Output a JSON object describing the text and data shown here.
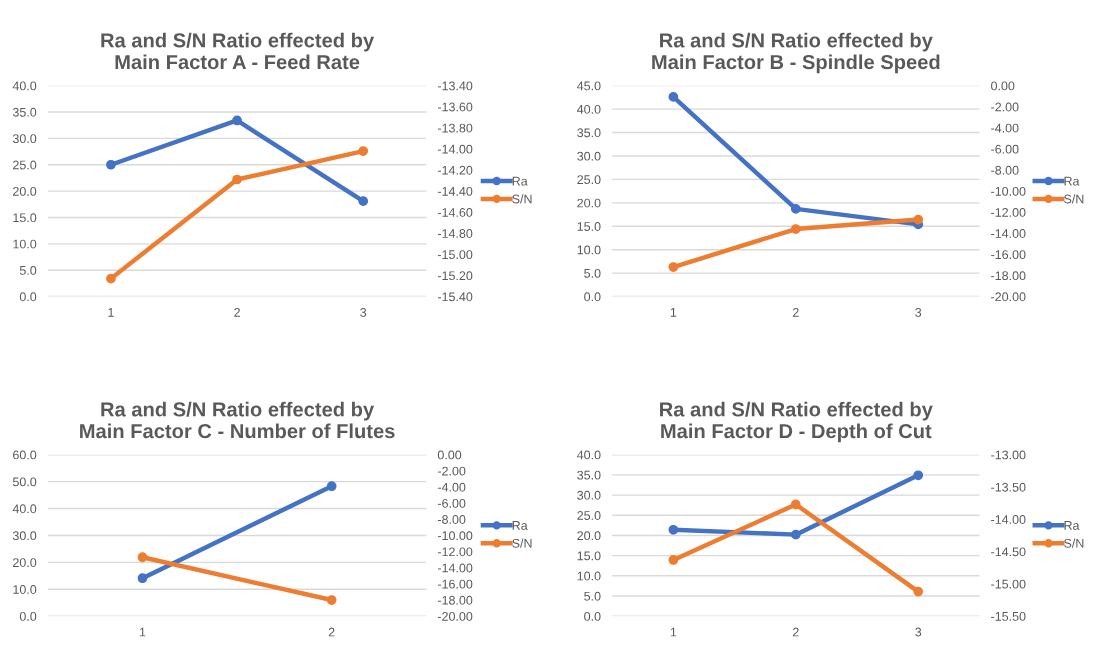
{
  "chart_data": [
    {
      "type": "line",
      "title": "Ra and S/N Ratio effected by\nMain Factor A - Feed Rate",
      "categories": [
        "1",
        "2",
        "3"
      ],
      "series": [
        {
          "name": "Ra",
          "color": "#4472c4",
          "values": [
            25.0,
            33.4,
            18.1
          ]
        },
        {
          "name": "S/N",
          "color": "#ed7d31",
          "axis": "y2",
          "values": [
            -15.23,
            -14.29,
            -14.02
          ]
        }
      ],
      "ylim": [
        0,
        40
      ],
      "yticks": [
        {
          "value": 0,
          "label": "0.0"
        },
        {
          "value": 5,
          "label": "5.0"
        },
        {
          "value": 10,
          "label": "10.0"
        },
        {
          "value": 15,
          "label": "15.0"
        },
        {
          "value": 20,
          "label": "20.0"
        },
        {
          "value": 25,
          "label": "25.0"
        },
        {
          "value": 30,
          "label": "30.0"
        },
        {
          "value": 35,
          "label": "35.0"
        },
        {
          "value": 40,
          "label": "40.0"
        }
      ],
      "y2lim": [
        -15.4,
        -13.4
      ],
      "y2ticks": [
        {
          "value": -15.4,
          "label": "-15.40"
        },
        {
          "value": -15.2,
          "label": "-15.20"
        },
        {
          "value": -15.0,
          "label": "-15.00"
        },
        {
          "value": -14.8,
          "label": "-14.80"
        },
        {
          "value": -14.6,
          "label": "-14.60"
        },
        {
          "value": -14.4,
          "label": "-14.40"
        },
        {
          "value": -14.2,
          "label": "-14.20"
        },
        {
          "value": -14.0,
          "label": "-14.00"
        },
        {
          "value": -13.8,
          "label": "-13.80"
        },
        {
          "value": -13.6,
          "label": "-13.60"
        },
        {
          "value": -13.4,
          "label": "-13.40"
        }
      ],
      "grid": "y",
      "legend": "right",
      "marker": "circle"
    },
    {
      "type": "line",
      "title": "Ra and S/N Ratio effected by\nMain Factor B - Spindle Speed",
      "categories": [
        "1",
        "2",
        "3"
      ],
      "series": [
        {
          "name": "Ra",
          "color": "#4472c4",
          "values": [
            42.6,
            18.7,
            15.4
          ]
        },
        {
          "name": "S/N",
          "color": "#ed7d31",
          "axis": "y2",
          "values": [
            -17.2,
            -13.6,
            -12.7
          ]
        }
      ],
      "ylim": [
        0,
        45
      ],
      "yticks": [
        {
          "value": 0,
          "label": "0.0"
        },
        {
          "value": 5,
          "label": "5.0"
        },
        {
          "value": 10,
          "label": "10.0"
        },
        {
          "value": 15,
          "label": "15.0"
        },
        {
          "value": 20,
          "label": "20.0"
        },
        {
          "value": 25,
          "label": "25.0"
        },
        {
          "value": 30,
          "label": "30.0"
        },
        {
          "value": 35,
          "label": "35.0"
        },
        {
          "value": 40,
          "label": "40.0"
        },
        {
          "value": 45,
          "label": "45.0"
        }
      ],
      "y2lim": [
        -20,
        0
      ],
      "y2ticks": [
        {
          "value": -20,
          "label": "-20.00"
        },
        {
          "value": -18,
          "label": "-18.00"
        },
        {
          "value": -16,
          "label": "-16.00"
        },
        {
          "value": -14,
          "label": "-14.00"
        },
        {
          "value": -12,
          "label": "-12.00"
        },
        {
          "value": -10,
          "label": "-10.00"
        },
        {
          "value": -8,
          "label": "-8.00"
        },
        {
          "value": -6,
          "label": "-6.00"
        },
        {
          "value": -4,
          "label": "-4.00"
        },
        {
          "value": -2,
          "label": "-2.00"
        },
        {
          "value": 0,
          "label": "0.00"
        }
      ],
      "grid": "y",
      "legend": "right",
      "marker": "circle"
    },
    {
      "type": "line",
      "title": "Ra and S/N Ratio effected by\nMain Factor C - Number of Flutes",
      "categories": [
        "1",
        "2"
      ],
      "series": [
        {
          "name": "Ra",
          "color": "#4472c4",
          "values": [
            14.1,
            48.3
          ]
        },
        {
          "name": "S/N",
          "color": "#ed7d31",
          "axis": "y2",
          "values": [
            -12.7,
            -18.0
          ]
        }
      ],
      "ylim": [
        0,
        60
      ],
      "yticks": [
        {
          "value": 0,
          "label": "0.0"
        },
        {
          "value": 10,
          "label": "10.0"
        },
        {
          "value": 20,
          "label": "20.0"
        },
        {
          "value": 30,
          "label": "30.0"
        },
        {
          "value": 40,
          "label": "40.0"
        },
        {
          "value": 50,
          "label": "50.0"
        },
        {
          "value": 60,
          "label": "60.0"
        }
      ],
      "y2lim": [
        -20,
        0
      ],
      "y2ticks": [
        {
          "value": -20,
          "label": "-20.00"
        },
        {
          "value": -18,
          "label": "-18.00"
        },
        {
          "value": -16,
          "label": "-16.00"
        },
        {
          "value": -14,
          "label": "-14.00"
        },
        {
          "value": -12,
          "label": "-12.00"
        },
        {
          "value": -10,
          "label": "-10.00"
        },
        {
          "value": -8,
          "label": "-8.00"
        },
        {
          "value": -6,
          "label": "-6.00"
        },
        {
          "value": -4,
          "label": "-4.00"
        },
        {
          "value": -2,
          "label": "-2.00"
        },
        {
          "value": 0,
          "label": "0.00"
        }
      ],
      "grid": "y",
      "legend": "right",
      "marker": "circle"
    },
    {
      "type": "line",
      "title": "Ra and S/N Ratio effected by\nMain Factor D - Depth of Cut",
      "categories": [
        "1",
        "2",
        "3"
      ],
      "series": [
        {
          "name": "Ra",
          "color": "#4472c4",
          "values": [
            21.4,
            20.2,
            34.9
          ]
        },
        {
          "name": "S/N",
          "color": "#ed7d31",
          "axis": "y2",
          "values": [
            -14.63,
            -13.77,
            -15.12
          ]
        }
      ],
      "ylim": [
        0,
        40
      ],
      "yticks": [
        {
          "value": 0,
          "label": "0.0"
        },
        {
          "value": 5,
          "label": "5.0"
        },
        {
          "value": 10,
          "label": "10.0"
        },
        {
          "value": 15,
          "label": "15.0"
        },
        {
          "value": 20,
          "label": "20.0"
        },
        {
          "value": 25,
          "label": "25.0"
        },
        {
          "value": 30,
          "label": "30.0"
        },
        {
          "value": 35,
          "label": "35.0"
        },
        {
          "value": 40,
          "label": "40.0"
        }
      ],
      "y2lim": [
        -15.5,
        -13.0
      ],
      "y2ticks": [
        {
          "value": -15.5,
          "label": "-15.50"
        },
        {
          "value": -15.0,
          "label": "-15.00"
        },
        {
          "value": -14.5,
          "label": "-14.50"
        },
        {
          "value": -14.0,
          "label": "-14.00"
        },
        {
          "value": -13.5,
          "label": "-13.50"
        },
        {
          "value": -13.0,
          "label": "-13.00"
        }
      ],
      "grid": "y",
      "legend": "right",
      "marker": "circle"
    }
  ]
}
